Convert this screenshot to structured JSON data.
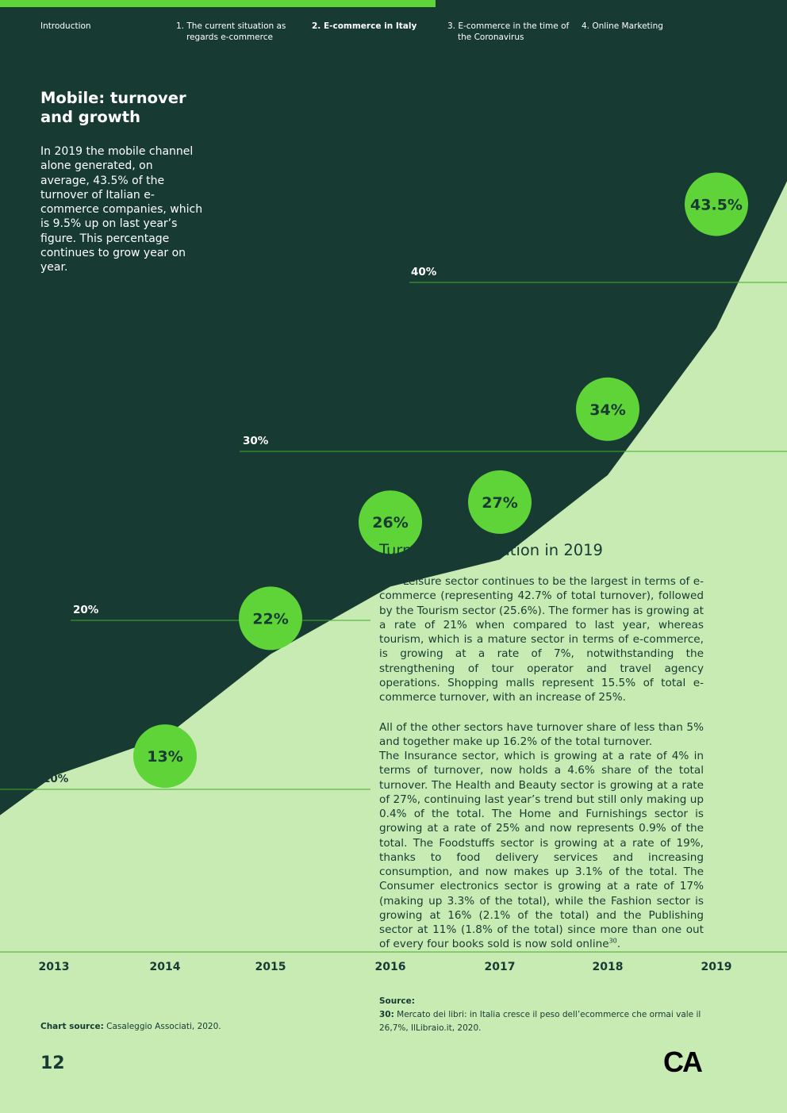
{
  "nav": {
    "items": [
      {
        "label": "Introduction"
      },
      {
        "label": "1. The current situation as",
        "label2": "regards e-commerce"
      },
      {
        "label": "2. E-commerce in Italy"
      },
      {
        "label": "3. E-commerce in the time of",
        "label2": "the Coronavirus"
      },
      {
        "label": "4. Online Marketing"
      }
    ],
    "active_index": 2
  },
  "colors": {
    "dark": "#173b33",
    "light": "#c8ebb4",
    "accent": "#5fd438",
    "line": "#3dac23"
  },
  "page_title": "Mobile: turnover and growth",
  "intro_text": "In 2019 the mobile channel alone generated, on average, 43.5% of the turnover of Italian e-commerce companies, which is 9.5% up on last year’s figure. This percentage continues to grow year on year.",
  "chart_data": {
    "type": "area",
    "title": "Mobile: turnover and growth",
    "x": [
      "2013",
      "2014",
      "2015",
      "2016",
      "2017",
      "2018",
      "2019"
    ],
    "series": [
      {
        "name": "Mobile share of e-commerce turnover (%)",
        "values": [
          null,
          13,
          22,
          26,
          27,
          34,
          43.5
        ]
      }
    ],
    "data_labels": [
      "13%",
      "22%",
      "26%",
      "27%",
      "34%",
      "43.5%"
    ],
    "gridlines": [
      {
        "value": 10,
        "label": "10%"
      },
      {
        "value": 20,
        "label": "20%"
      },
      {
        "value": 30,
        "label": "30%"
      },
      {
        "value": 40,
        "label": "40%"
      }
    ],
    "ylabel": "",
    "xlabel": "",
    "legend": "none"
  },
  "section2": {
    "title": "Turnover distribution in 2019",
    "para1": "The Leisure sector continues to be the largest in terms of e-commerce (representing 42.7% of total turnover), followed by the Tourism sector (25.6%). The former has is growing at a rate of 21% when compared to last year, whereas tourism, which is a mature sector in terms of e-commerce, is growing at a rate of 7%, notwithstanding the strengthening of tour operator and travel agency operations. Shopping malls represent 15.5% of total e-commerce turnover, with an increase of 25%.",
    "para2": "All of the other sectors have turnover share of less than 5% and together make up 16.2% of the total turnover.",
    "para3": "The Insurance sector, which is growing at a rate of 4% in terms of turnover, now holds a 4.6% share of the total turnover. The Health and Beauty sector is growing at a rate of 27%, continuing last year’s trend but still only making up 0.4% of the total. The Home and Furnishings sector is growing at a rate of 25% and now represents 0.9% of the total. The Foodstuffs sector is growing at a rate of 19%, thanks to food delivery services and increasing consumption, and now makes up 3.1% of the total. The Consumer electronics sector is growing at a rate of 17% (making up 3.3% of the total), while the Fashion sector is growing at 16% (2.1% of the total) and the Publishing sector at 11% (1.8% of the total) since more than one out of every four books sold is now sold online",
    "footnote_ref": "30",
    "para3_end": "."
  },
  "footer": {
    "chart_source_label": "Chart source:",
    "chart_source": "Casaleggio Associati, 2020.",
    "source_label": "Source:",
    "source_ref": "30:",
    "source_text": "Mercato dei libri: in Italia cresce il peso dell’ecommerce che ormai vale il 26,7%, IlLibraio.it, 2020.",
    "page_number": "12",
    "logo": "CA"
  }
}
